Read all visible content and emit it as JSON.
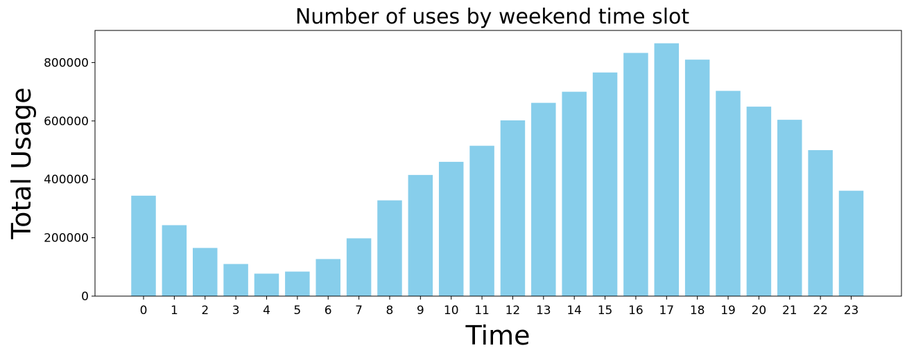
{
  "chart_data": {
    "type": "bar",
    "title": "Number of uses by weekend time slot",
    "xlabel": "Time",
    "ylabel": "Total Usage",
    "categories": [
      "0",
      "1",
      "2",
      "3",
      "4",
      "5",
      "6",
      "7",
      "8",
      "9",
      "10",
      "11",
      "12",
      "13",
      "14",
      "15",
      "16",
      "17",
      "18",
      "19",
      "20",
      "21",
      "22",
      "23"
    ],
    "values": [
      344000,
      243000,
      165000,
      110000,
      77000,
      84000,
      127000,
      198000,
      328000,
      415000,
      460000,
      515000,
      602000,
      662000,
      700000,
      766000,
      833000,
      866000,
      810000,
      703000,
      649000,
      604000,
      500000,
      361000
    ],
    "yticks": [
      0,
      200000,
      400000,
      600000,
      800000
    ],
    "ylim": [
      0,
      910000
    ],
    "grid": false,
    "bar_color": "#87CEEB"
  }
}
